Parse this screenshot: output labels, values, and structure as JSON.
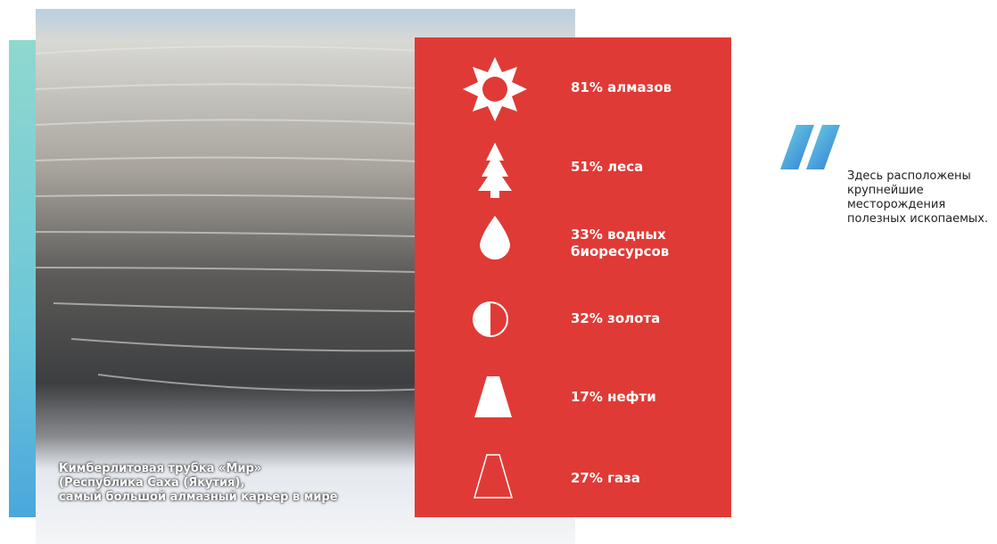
{
  "panel": {
    "items": [
      {
        "label": "81% алмазов"
      },
      {
        "label": "51% леса"
      },
      {
        "label": "33% водных биоресурсов"
      },
      {
        "label": "32% золота"
      },
      {
        "label": "17% нефти"
      },
      {
        "label": "27% газа"
      }
    ]
  },
  "caption": {
    "lines": [
      "Кимберлитовая трубка «Мир»",
      "(Республика Саха (Якутия),",
      "самый большой алмазный карьер в мире"
    ]
  },
  "note": {
    "lines": [
      "Здесь расположены",
      "крупнейшие",
      "месторождения",
      "полезных ископаемых."
    ]
  }
}
